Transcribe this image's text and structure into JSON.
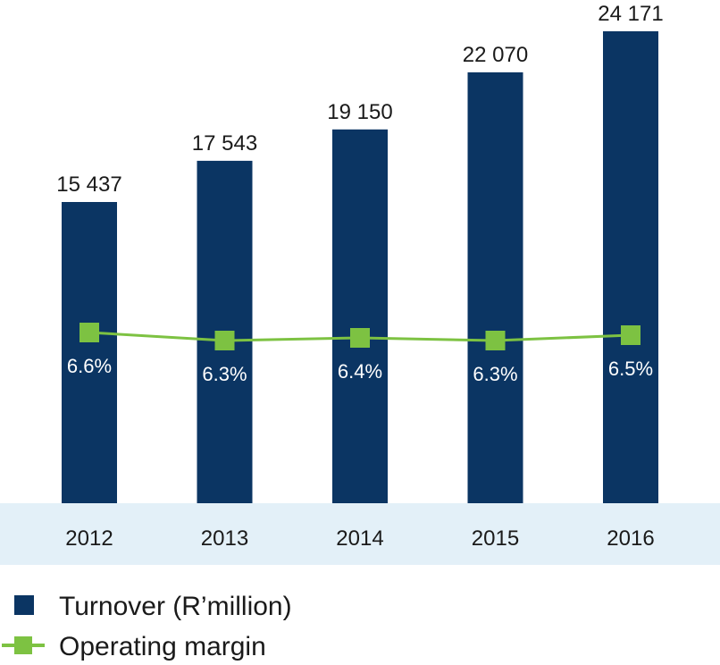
{
  "chart_data": {
    "type": "bar",
    "categories": [
      "2012",
      "2013",
      "2014",
      "2015",
      "2016"
    ],
    "series": [
      {
        "name": "Turnover (R’million)",
        "type": "bar",
        "values": [
          15437,
          17543,
          19150,
          22070,
          24171
        ],
        "labels": [
          "15 437",
          "17 543",
          "19 150",
          "22 070",
          "24 171"
        ],
        "color": "#0b3563"
      },
      {
        "name": "Operating margin",
        "type": "line",
        "values": [
          6.6,
          6.3,
          6.4,
          6.3,
          6.5
        ],
        "labels": [
          "6.6%",
          "6.3%",
          "6.4%",
          "6.3%",
          "6.5%"
        ],
        "color": "#7dc242"
      }
    ],
    "title": "",
    "xlabel": "",
    "ylabel": "",
    "grid": false,
    "legend": "bottom-left",
    "axis_band_color": "#e3f0f8"
  }
}
